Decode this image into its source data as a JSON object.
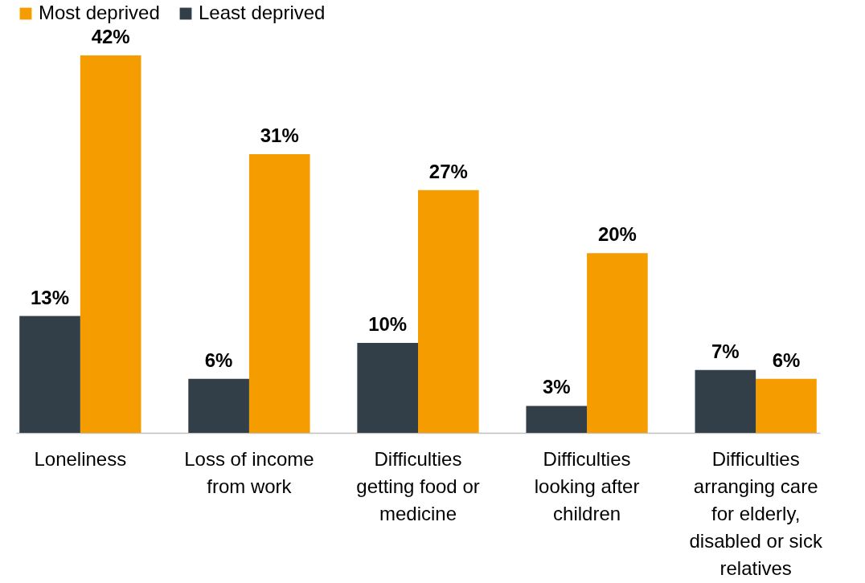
{
  "chart_data": {
    "type": "bar",
    "categories": [
      "Loneliness",
      "Loss of income from work",
      "Difficulties getting food or medicine",
      "Difficulties looking after children",
      "Difficulties arranging care for elderly, disabled or sick relatives"
    ],
    "series": [
      {
        "name": "Most deprived",
        "color": "#f59c00",
        "values": [
          42,
          31,
          27,
          20,
          6
        ],
        "value_labels": [
          "42%",
          "31%",
          "27%",
          "20%",
          "6%"
        ]
      },
      {
        "name": "Least deprived",
        "color": "#333f48",
        "values": [
          13,
          6,
          10,
          3,
          7
        ],
        "value_labels": [
          "13%",
          "6%",
          "10%",
          "3%",
          "7%"
        ]
      }
    ],
    "legend": "top",
    "grid": false
  }
}
